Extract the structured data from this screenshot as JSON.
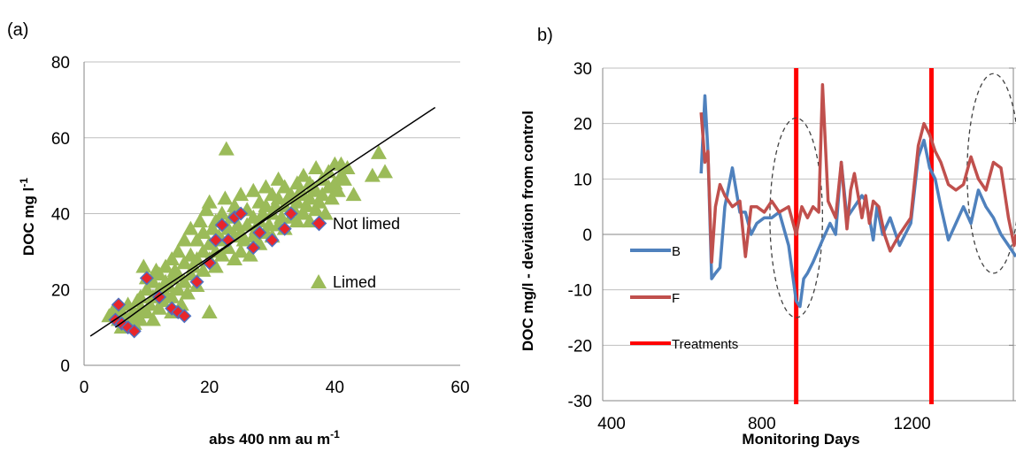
{
  "panels": {
    "a": {
      "label": "(a)"
    },
    "b": {
      "label": "b)"
    }
  },
  "chart_data": [
    {
      "type": "scatter",
      "title": "",
      "xlabel": "abs 400 nm au m",
      "xlabel_sup": "-1",
      "ylabel": "DOC  mg l",
      "ylabel_sup": "-1",
      "xlim": [
        0,
        60
      ],
      "ylim": [
        0,
        80
      ],
      "x_ticks": [
        "0",
        "20",
        "40",
        "60"
      ],
      "y_ticks": [
        "0",
        "20",
        "40",
        "60",
        "80"
      ],
      "grid": "horizontal",
      "legend_position": "lower-right",
      "colors": {
        "not_limed_fill": "#e8262a",
        "not_limed_edge": "#4f6fbf",
        "limed": "#9bbb59",
        "fit": "#000000"
      },
      "series": [
        {
          "name": "Not limed",
          "marker": "diamond",
          "points": [
            [
              5,
              12
            ],
            [
              5.5,
              16
            ],
            [
              6,
              11
            ],
            [
              7,
              10
            ],
            [
              8,
              9
            ],
            [
              10,
              23
            ],
            [
              12,
              18
            ],
            [
              14,
              15
            ],
            [
              15,
              14
            ],
            [
              16,
              13
            ],
            [
              18,
              22
            ],
            [
              20,
              27
            ],
            [
              21,
              33
            ],
            [
              22,
              37
            ],
            [
              23,
              33
            ],
            [
              24,
              39
            ],
            [
              25,
              40
            ],
            [
              27,
              31
            ],
            [
              28,
              35
            ],
            [
              30,
              33
            ],
            [
              32,
              36
            ],
            [
              33,
              40
            ]
          ]
        },
        {
          "name": "Limed",
          "marker": "triangle",
          "points": [
            [
              4,
              13
            ],
            [
              4.5,
              14
            ],
            [
              5,
              15
            ],
            [
              5.5,
              12
            ],
            [
              6,
              10
            ],
            [
              6,
              14
            ],
            [
              6.5,
              11
            ],
            [
              7,
              12
            ],
            [
              7,
              16
            ],
            [
              7.5,
              13
            ],
            [
              8,
              11
            ],
            [
              8,
              14
            ],
            [
              8.5,
              17
            ],
            [
              9,
              12
            ],
            [
              9,
              15
            ],
            [
              9,
              18
            ],
            [
              9.5,
              26
            ],
            [
              10,
              14
            ],
            [
              10,
              20
            ],
            [
              10,
              23
            ],
            [
              10.5,
              16
            ],
            [
              11,
              12
            ],
            [
              11,
              18
            ],
            [
              11,
              22
            ],
            [
              11.5,
              25
            ],
            [
              12,
              15
            ],
            [
              12,
              20
            ],
            [
              12,
              24
            ],
            [
              12.5,
              17
            ],
            [
              13,
              19
            ],
            [
              13,
              22
            ],
            [
              13,
              26
            ],
            [
              13.5,
              21
            ],
            [
              14,
              14
            ],
            [
              14,
              18
            ],
            [
              14,
              23
            ],
            [
              14,
              28
            ],
            [
              14.5,
              25
            ],
            [
              15,
              20
            ],
            [
              15,
              24
            ],
            [
              15,
              30
            ],
            [
              15.5,
              16
            ],
            [
              16,
              22
            ],
            [
              16,
              27
            ],
            [
              16,
              33
            ],
            [
              16.5,
              19
            ],
            [
              17,
              24
            ],
            [
              17,
              29
            ],
            [
              17,
              36
            ],
            [
              17.5,
              26
            ],
            [
              18,
              21
            ],
            [
              18,
              28
            ],
            [
              18,
              33
            ],
            [
              18.5,
              38
            ],
            [
              19,
              25
            ],
            [
              19,
              30
            ],
            [
              19,
              35
            ],
            [
              19.5,
              41
            ],
            [
              20,
              14
            ],
            [
              20,
              28
            ],
            [
              20,
              32
            ],
            [
              20,
              43
            ],
            [
              20.5,
              36
            ],
            [
              21,
              26
            ],
            [
              21,
              30
            ],
            [
              21,
              38
            ],
            [
              21.5,
              34
            ],
            [
              22,
              29
            ],
            [
              22,
              33
            ],
            [
              22,
              40
            ],
            [
              22.5,
              44
            ],
            [
              22.7,
              57
            ],
            [
              23,
              31
            ],
            [
              23,
              36
            ],
            [
              23.5,
              39
            ],
            [
              24,
              28
            ],
            [
              24,
              34
            ],
            [
              24,
              42
            ],
            [
              24.5,
              37
            ],
            [
              25,
              30
            ],
            [
              25,
              35
            ],
            [
              25,
              45
            ],
            [
              25.5,
              33
            ],
            [
              26,
              37
            ],
            [
              26,
              41
            ],
            [
              26.5,
              29
            ],
            [
              27,
              34
            ],
            [
              27,
              39
            ],
            [
              27,
              46
            ],
            [
              27.5,
              36
            ],
            [
              28,
              32
            ],
            [
              28,
              38
            ],
            [
              28,
              43
            ],
            [
              28.5,
              40
            ],
            [
              29,
              35
            ],
            [
              29,
              42
            ],
            [
              29,
              47
            ],
            [
              29.5,
              37
            ],
            [
              30,
              34
            ],
            [
              30,
              40
            ],
            [
              30,
              45
            ],
            [
              30.5,
              42
            ],
            [
              31,
              37
            ],
            [
              31,
              44
            ],
            [
              31,
              49
            ],
            [
              31.5,
              39
            ],
            [
              32,
              36
            ],
            [
              32,
              42
            ],
            [
              32,
              47
            ],
            [
              32.5,
              44
            ],
            [
              33,
              39
            ],
            [
              33,
              45
            ],
            [
              33.5,
              41
            ],
            [
              34,
              38
            ],
            [
              34,
              43
            ],
            [
              34,
              48
            ],
            [
              34.5,
              46
            ],
            [
              35,
              40
            ],
            [
              35,
              45
            ],
            [
              35,
              50
            ],
            [
              35.5,
              42
            ],
            [
              36,
              38
            ],
            [
              36,
              44
            ],
            [
              36,
              48
            ],
            [
              36.5,
              47
            ],
            [
              37,
              41
            ],
            [
              37,
              46
            ],
            [
              37,
              52
            ],
            [
              37.5,
              43
            ],
            [
              38,
              45
            ],
            [
              38,
              49
            ],
            [
              38.5,
              40
            ],
            [
              39,
              47
            ],
            [
              39,
              51
            ],
            [
              39.5,
              44
            ],
            [
              40,
              48
            ],
            [
              40,
              53
            ],
            [
              40.5,
              46
            ],
            [
              41,
              50
            ],
            [
              41,
              53
            ],
            [
              41.5,
              49
            ],
            [
              42,
              52
            ],
            [
              43,
              45
            ],
            [
              46,
              50
            ],
            [
              47,
              56
            ],
            [
              48,
              51
            ]
          ]
        }
      ],
      "fit_lines": [
        {
          "x": [
            1,
            56
          ],
          "y": [
            7.7,
            68
          ]
        },
        {
          "x": [
            5,
            40
          ],
          "y": [
            10,
            52
          ]
        }
      ]
    },
    {
      "type": "line",
      "title": "",
      "xlabel": "Monitoring Days",
      "ylabel": "DOC mg/l - deviation from control",
      "xlim": [
        400,
        1500
      ],
      "ylim": [
        -30,
        30
      ],
      "x_ticks": [
        "400",
        "800",
        "1200"
      ],
      "y_ticks": [
        "-30",
        "-20",
        "-10",
        "0",
        "10",
        "20",
        "30"
      ],
      "grid": "horizontal",
      "legend_position": "lower-left",
      "colors": {
        "B": "#4f81bd",
        "F": "#c0504d",
        "Treatments": "#ff0000",
        "ellipse": "#404040"
      },
      "series": [
        {
          "name": "B",
          "x": [
            662,
            672,
            680,
            690,
            700,
            712,
            725,
            745,
            765,
            780,
            795,
            810,
            830,
            850,
            870,
            895,
            915,
            925,
            935,
            945,
            960,
            985,
            1005,
            1020,
            1035,
            1050,
            1070,
            1090,
            1100,
            1110,
            1120,
            1130,
            1145,
            1165,
            1190,
            1220,
            1240,
            1255,
            1270,
            1285,
            1300,
            1320,
            1340,
            1360,
            1380,
            1400,
            1420,
            1440,
            1460,
            1480,
            1500
          ],
          "y": [
            11,
            25,
            15,
            -8,
            -7,
            -6,
            5,
            12,
            4,
            4,
            0,
            2,
            3,
            3,
            4,
            -2,
            -12,
            -13,
            -8,
            -7,
            -5,
            -1,
            2,
            0,
            13,
            3,
            5,
            7,
            6,
            3,
            -1,
            5,
            0,
            3,
            -2,
            2,
            14,
            17,
            12,
            10,
            5,
            -1,
            2,
            5,
            2,
            8,
            5,
            3,
            0,
            -2,
            -4
          ]
        },
        {
          "name": "F",
          "x": [
            662,
            672,
            680,
            690,
            700,
            712,
            725,
            745,
            765,
            780,
            795,
            810,
            830,
            850,
            870,
            895,
            915,
            930,
            945,
            960,
            975,
            985,
            1000,
            1020,
            1035,
            1050,
            1060,
            1070,
            1090,
            1100,
            1110,
            1120,
            1135,
            1150,
            1165,
            1190,
            1220,
            1240,
            1255,
            1270,
            1285,
            1300,
            1320,
            1340,
            1360,
            1380,
            1400,
            1420,
            1440,
            1460,
            1480,
            1495,
            1500
          ],
          "y": [
            22,
            13,
            15,
            -5,
            5,
            9,
            7,
            5,
            6,
            -4,
            5,
            5,
            4,
            6,
            4,
            5,
            0,
            5,
            3,
            5,
            4,
            27,
            6,
            3,
            13,
            1,
            8,
            11,
            3,
            7,
            2,
            6,
            5,
            0,
            -3,
            0,
            3,
            16,
            20,
            18,
            15,
            13,
            9,
            8,
            9,
            14,
            10,
            8,
            13,
            12,
            3,
            -2,
            0
          ]
        }
      ],
      "treatments": {
        "name": "Treatments",
        "x": [
          915,
          1275
        ]
      },
      "ellipses": [
        {
          "cx": 915,
          "cy": 3,
          "rx": 70,
          "ry": 18
        },
        {
          "cx": 1440,
          "cy": 11,
          "rx": 70,
          "ry": 18
        }
      ]
    }
  ]
}
